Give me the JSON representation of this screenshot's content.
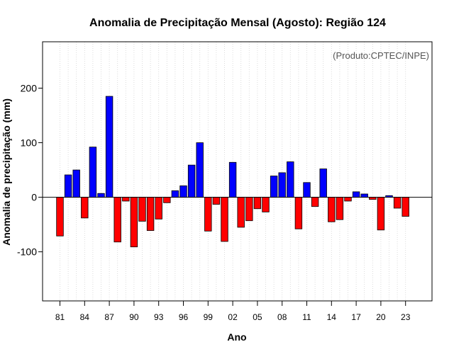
{
  "chart_data": {
    "type": "bar",
    "title": "Anomalia de Precipitação Mensal (Agosto): Região 124",
    "xlabel": "Ano",
    "ylabel": "Anomalia de precipitação (mm)",
    "annotation": "(Produto:CPTEC/INPE)",
    "ylim": [
      -190,
      285
    ],
    "yticks": [
      -100,
      0,
      100,
      200
    ],
    "ytick_labels": [
      "-100",
      "0",
      "100",
      "200"
    ],
    "xtick_labels": [
      "81",
      "84",
      "87",
      "90",
      "93",
      "96",
      "99",
      "02",
      "05",
      "08",
      "11",
      "14",
      "17",
      "20",
      "23"
    ],
    "grid": true,
    "positive_color": "#0000ff",
    "negative_color": "#ff0000",
    "categories": [
      "81",
      "82",
      "83",
      "84",
      "85",
      "86",
      "87",
      "88",
      "89",
      "90",
      "91",
      "92",
      "93",
      "94",
      "95",
      "96",
      "97",
      "98",
      "99",
      "00",
      "01",
      "02",
      "03",
      "04",
      "05",
      "06",
      "07",
      "08",
      "09",
      "10",
      "11",
      "12",
      "13",
      "14",
      "15",
      "16",
      "17",
      "18",
      "19",
      "20",
      "21",
      "22",
      "23"
    ],
    "values": [
      -71,
      41,
      50,
      -38,
      92,
      7,
      185,
      -82,
      -7,
      -91,
      -44,
      -61,
      -40,
      -10,
      12,
      21,
      59,
      100,
      -62,
      -13,
      -81,
      64,
      -55,
      -43,
      -21,
      -27,
      39,
      45,
      65,
      -58,
      27,
      -17,
      52,
      -45,
      -41,
      -7,
      10,
      6,
      -4,
      -60,
      3,
      -20,
      -35
    ]
  }
}
